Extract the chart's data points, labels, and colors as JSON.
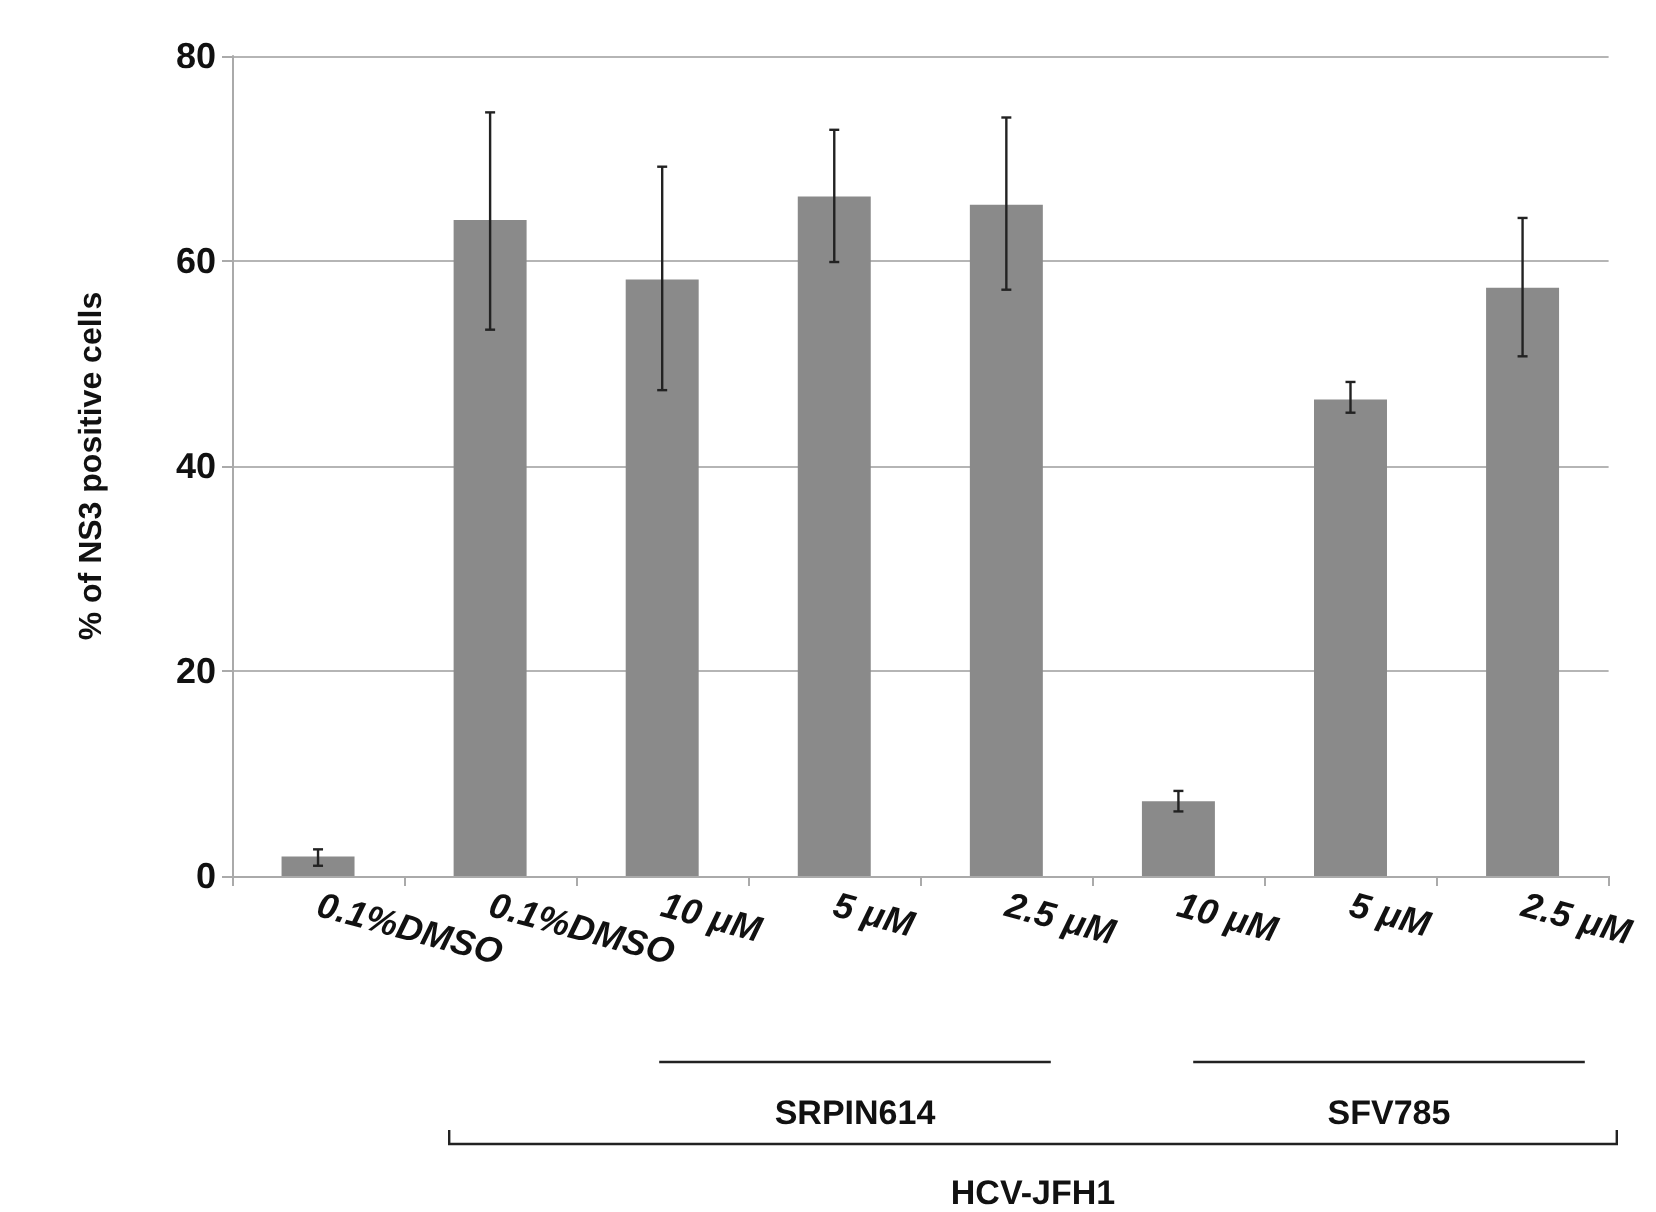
{
  "chart_data": {
    "type": "bar",
    "ylabel": "% of NS3 positive cells",
    "categories": [
      "0.1%DMSO",
      "0.1%DMSO",
      "10 μM",
      "5 μM",
      "2.5 μM",
      "10 μM",
      "5 μM",
      "2.5 μM"
    ],
    "values": [
      1.9,
      64,
      58.2,
      66.3,
      65.5,
      7.3,
      46.5,
      57.4
    ],
    "errors": [
      [
        1.0,
        2.6
      ],
      [
        53.3,
        74.5
      ],
      [
        47.4,
        69.2
      ],
      [
        59.9,
        72.8
      ],
      [
        57.2,
        74
      ],
      [
        6.3,
        8.3
      ],
      [
        45.2,
        48.2
      ],
      [
        50.7,
        64.2
      ]
    ],
    "color": "#8a8a8a",
    "ylim": [
      0,
      80
    ],
    "yticks": [
      0,
      20,
      40,
      60,
      80
    ],
    "grid": "y",
    "annotations": [
      "SRPIN614",
      "SFV785",
      "HCV-JFH1"
    ]
  }
}
